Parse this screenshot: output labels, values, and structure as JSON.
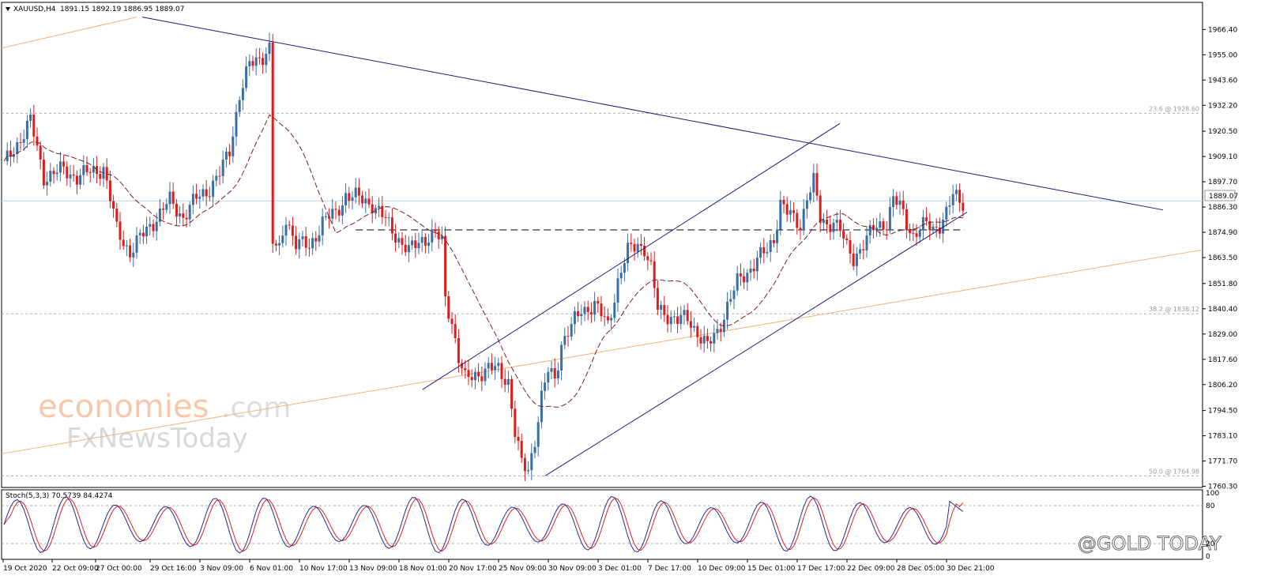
{
  "header": {
    "symbol": "XAUUSD,H4",
    "ohlc": "1891.15 1892.19 1886.95 1889.07"
  },
  "price_tag": "1889.07",
  "indicator_label": "Stoch(5,3,3) 70.5739 84.4274",
  "watermarks": {
    "economies": "economies",
    "dotcom": ".com",
    "fx": "FxNewsToday",
    "gold": "@GOLD TODAY"
  },
  "colors": {
    "bull": "#3a6fa6",
    "bear": "#dd1c1c",
    "trendline": "#1b1b7a",
    "ma": "#7a2020",
    "long_ma": "#f2b27a",
    "stoch_main": "#2a2a8a",
    "stoch_signal": "#dd2222",
    "price_line": "#bcd3e6"
  },
  "chart_data": [
    {
      "type": "candlestick",
      "symbol": "XAUUSD",
      "timeframe": "H4",
      "ylim": [
        1758.0,
        1974.0
      ],
      "y_ticks": [
        1966.4,
        1955.0,
        1943.6,
        1932.2,
        1920.5,
        1909.1,
        1897.7,
        1886.3,
        1874.9,
        1863.5,
        1851.8,
        1840.4,
        1829.0,
        1817.6,
        1806.2,
        1794.5,
        1783.1,
        1771.7,
        1760.3
      ],
      "y_tick_labels": [
        "1966.40",
        "1955.00",
        "1943.60",
        "1932.20",
        "1920.50",
        "1909.10",
        "1897.70",
        "1886.30",
        "1874.90",
        "1863.50",
        "1851.80",
        "1840.40",
        "1829.00",
        "1817.60",
        "1806.20",
        "1794.50",
        "1783.10",
        "1771.70",
        "1760.30"
      ],
      "x_tick_labels": [
        "19 Oct 2020",
        "22 Oct 09:00",
        "27 Oct 00:00",
        "29 Oct 16:00",
        "3 Nov 09:00",
        "6 Nov 01:00",
        "10 Nov 17:00",
        "13 Nov 09:00",
        "18 Nov 01:00",
        "20 Nov 17:00",
        "25 Nov 09:00",
        "30 Nov 09:00",
        "3 Dec 01:00",
        "7 Dec 17:00",
        "10 Dec 09:00",
        "15 Dec 01:00",
        "17 Dec 17:00",
        "22 Dec 09:00",
        "28 Dec 05:00",
        "30 Dec 21:00"
      ],
      "fib_levels": [
        {
          "label": "23.6 @ 1928.60",
          "value": 1928.6
        },
        {
          "label": "38.2 @ 1838.12",
          "value": 1838.12
        },
        {
          "label": "50.0 @ 1764.98",
          "value": 1764.98
        }
      ],
      "current_price": 1889.07,
      "horizontal_level": 1876.0,
      "anchors": [
        {
          "bar": 0,
          "price": 1905
        },
        {
          "bar": 8,
          "price": 1925
        },
        {
          "bar": 12,
          "price": 1900
        },
        {
          "bar": 18,
          "price": 1903
        },
        {
          "bar": 22,
          "price": 1900
        },
        {
          "bar": 26,
          "price": 1902
        },
        {
          "bar": 30,
          "price": 1904
        },
        {
          "bar": 34,
          "price": 1876
        },
        {
          "bar": 38,
          "price": 1866
        },
        {
          "bar": 44,
          "price": 1878
        },
        {
          "bar": 50,
          "price": 1889
        },
        {
          "bar": 54,
          "price": 1882
        },
        {
          "bar": 58,
          "price": 1890
        },
        {
          "bar": 62,
          "price": 1895
        },
        {
          "bar": 65,
          "price": 1901
        },
        {
          "bar": 68,
          "price": 1912
        },
        {
          "bar": 71,
          "price": 1937
        },
        {
          "bar": 74,
          "price": 1950
        },
        {
          "bar": 78,
          "price": 1955
        },
        {
          "bar": 80,
          "price": 1958
        },
        {
          "bar": 81,
          "price": 1870
        },
        {
          "bar": 83,
          "price": 1866
        },
        {
          "bar": 85,
          "price": 1882
        },
        {
          "bar": 88,
          "price": 1870
        },
        {
          "bar": 92,
          "price": 1868
        },
        {
          "bar": 96,
          "price": 1880
        },
        {
          "bar": 100,
          "price": 1883
        },
        {
          "bar": 103,
          "price": 1892
        },
        {
          "bar": 107,
          "price": 1890
        },
        {
          "bar": 111,
          "price": 1888
        },
        {
          "bar": 115,
          "price": 1880
        },
        {
          "bar": 119,
          "price": 1872
        },
        {
          "bar": 122,
          "price": 1866
        },
        {
          "bar": 126,
          "price": 1872
        },
        {
          "bar": 130,
          "price": 1874
        },
        {
          "bar": 132,
          "price": 1870
        },
        {
          "bar": 133,
          "price": 1845
        },
        {
          "bar": 135,
          "price": 1835
        },
        {
          "bar": 137,
          "price": 1818
        },
        {
          "bar": 139,
          "price": 1808
        },
        {
          "bar": 142,
          "price": 1811
        },
        {
          "bar": 146,
          "price": 1813
        },
        {
          "bar": 149,
          "price": 1813
        },
        {
          "bar": 152,
          "price": 1808
        },
        {
          "bar": 154,
          "price": 1784
        },
        {
          "bar": 156,
          "price": 1770
        },
        {
          "bar": 158,
          "price": 1768
        },
        {
          "bar": 160,
          "price": 1782
        },
        {
          "bar": 162,
          "price": 1800
        },
        {
          "bar": 164,
          "price": 1812
        },
        {
          "bar": 166,
          "price": 1809
        },
        {
          "bar": 168,
          "price": 1825
        },
        {
          "bar": 171,
          "price": 1832
        },
        {
          "bar": 174,
          "price": 1840
        },
        {
          "bar": 178,
          "price": 1842
        },
        {
          "bar": 182,
          "price": 1833
        },
        {
          "bar": 185,
          "price": 1853
        },
        {
          "bar": 188,
          "price": 1866
        },
        {
          "bar": 191,
          "price": 1870
        },
        {
          "bar": 193,
          "price": 1868
        },
        {
          "bar": 195,
          "price": 1858
        },
        {
          "bar": 197,
          "price": 1840
        },
        {
          "bar": 200,
          "price": 1838
        },
        {
          "bar": 203,
          "price": 1835
        },
        {
          "bar": 206,
          "price": 1836
        },
        {
          "bar": 209,
          "price": 1830
        },
        {
          "bar": 212,
          "price": 1823
        },
        {
          "bar": 215,
          "price": 1830
        },
        {
          "bar": 218,
          "price": 1842
        },
        {
          "bar": 221,
          "price": 1852
        },
        {
          "bar": 224,
          "price": 1857
        },
        {
          "bar": 227,
          "price": 1863
        },
        {
          "bar": 230,
          "price": 1866
        },
        {
          "bar": 232,
          "price": 1872
        },
        {
          "bar": 234,
          "price": 1889
        },
        {
          "bar": 236,
          "price": 1884
        },
        {
          "bar": 238,
          "price": 1880
        },
        {
          "bar": 240,
          "price": 1878
        },
        {
          "bar": 242,
          "price": 1892
        },
        {
          "bar": 244,
          "price": 1898
        },
        {
          "bar": 246,
          "price": 1880
        },
        {
          "bar": 248,
          "price": 1878
        },
        {
          "bar": 250,
          "price": 1881
        },
        {
          "bar": 252,
          "price": 1876
        },
        {
          "bar": 254,
          "price": 1867
        },
        {
          "bar": 256,
          "price": 1863
        },
        {
          "bar": 258,
          "price": 1868
        },
        {
          "bar": 260,
          "price": 1872
        },
        {
          "bar": 262,
          "price": 1876
        },
        {
          "bar": 264,
          "price": 1878
        },
        {
          "bar": 266,
          "price": 1880
        },
        {
          "bar": 268,
          "price": 1890
        },
        {
          "bar": 270,
          "price": 1886
        },
        {
          "bar": 272,
          "price": 1879
        },
        {
          "bar": 274,
          "price": 1874
        },
        {
          "bar": 276,
          "price": 1877
        },
        {
          "bar": 278,
          "price": 1878
        },
        {
          "bar": 280,
          "price": 1876
        },
        {
          "bar": 282,
          "price": 1879
        },
        {
          "bar": 284,
          "price": 1884
        },
        {
          "bar": 286,
          "price": 1891
        },
        {
          "bar": 288,
          "price": 1889
        }
      ]
    },
    {
      "type": "line",
      "title": "Stoch(5,3,3)",
      "main_value": 70.5739,
      "signal_value": 84.4274,
      "ylim": [
        0,
        100
      ],
      "y_ticks": [
        0,
        20,
        80,
        100
      ],
      "levels": [
        20,
        80
      ]
    }
  ]
}
